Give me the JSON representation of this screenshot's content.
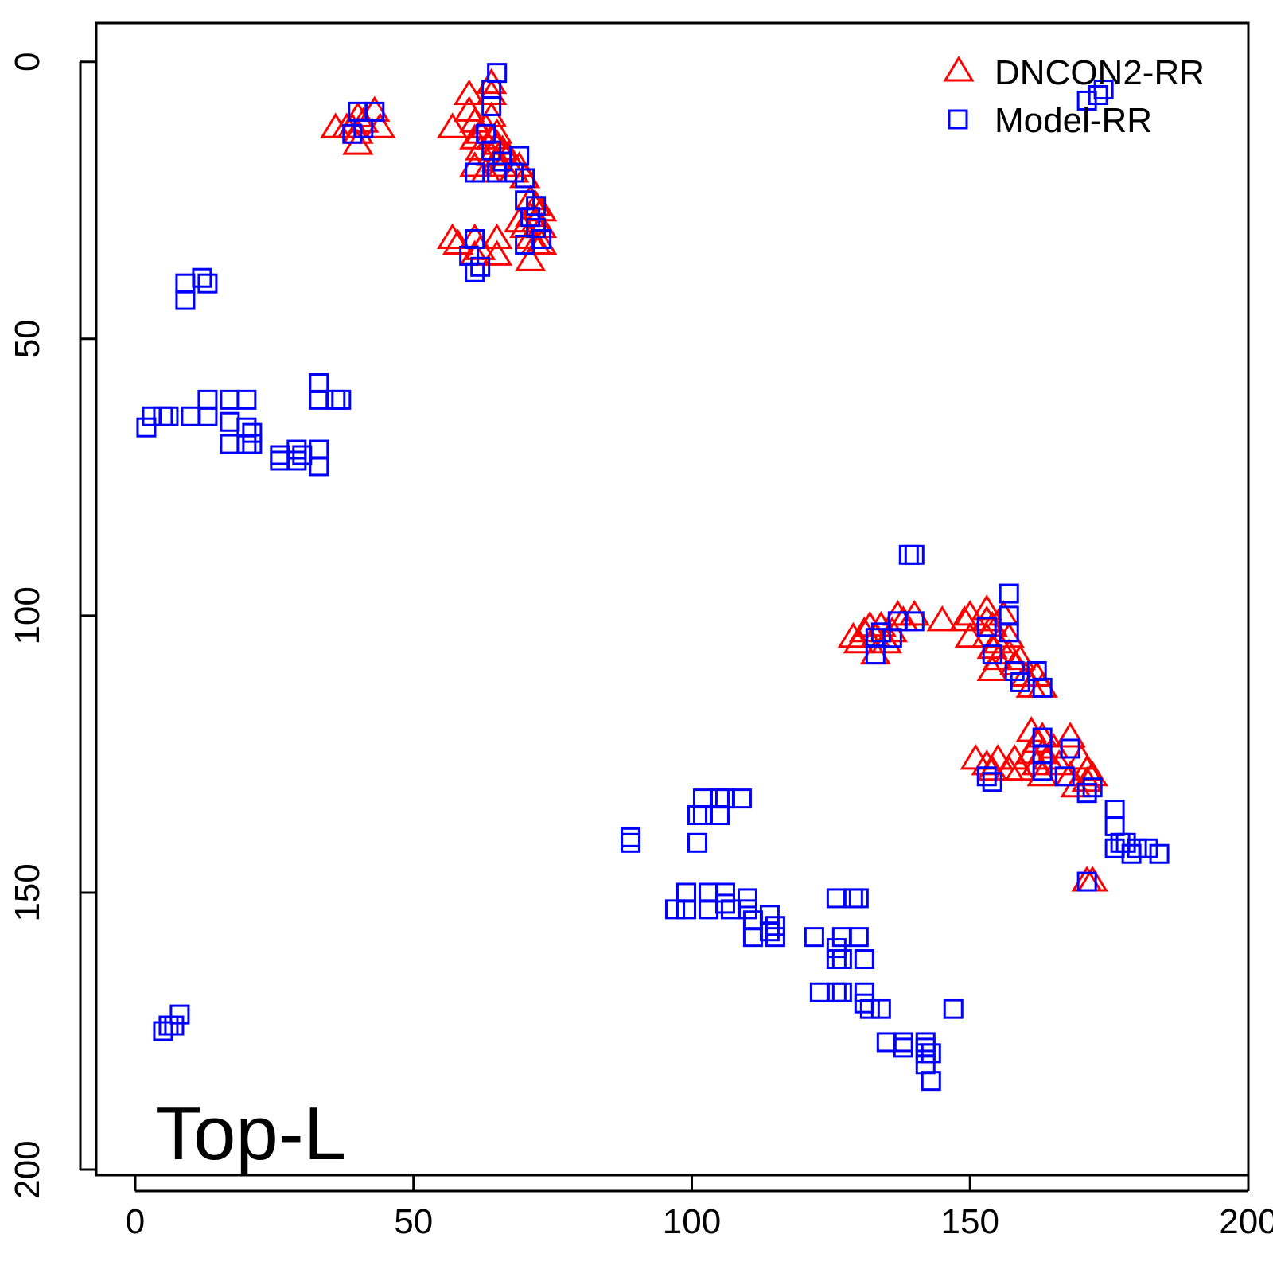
{
  "chart_data": {
    "type": "scatter",
    "title": "",
    "xlabel": "",
    "ylabel": "",
    "xlim": [
      -7,
      200
    ],
    "ylim": [
      -7,
      201
    ],
    "y_reversed": true,
    "x_ticks": [
      "0",
      "50",
      "100",
      "150",
      "200"
    ],
    "y_ticks": [
      "0",
      "50",
      "100",
      "150",
      "200"
    ],
    "grid": false,
    "legend_position": "top-right",
    "annotation": "Top-L",
    "series": [
      {
        "name": "DNCON2-RR",
        "marker": "triangle",
        "color": "#ff0000",
        "points": [
          [
            36,
            12
          ],
          [
            38,
            12
          ],
          [
            39,
            12
          ],
          [
            40,
            10
          ],
          [
            40,
            13
          ],
          [
            41,
            11
          ],
          [
            40,
            15
          ],
          [
            43,
            9
          ],
          [
            44,
            12
          ],
          [
            57,
            12
          ],
          [
            60,
            6
          ],
          [
            60,
            9
          ],
          [
            61,
            11
          ],
          [
            61,
            14
          ],
          [
            62,
            13
          ],
          [
            62,
            16
          ],
          [
            63,
            12
          ],
          [
            64,
            4
          ],
          [
            64,
            6
          ],
          [
            64,
            10
          ],
          [
            64,
            14
          ],
          [
            64,
            17
          ],
          [
            65,
            13
          ],
          [
            65,
            15
          ],
          [
            65,
            18
          ],
          [
            66,
            16
          ],
          [
            66,
            19
          ],
          [
            67,
            17
          ],
          [
            68,
            20
          ],
          [
            69,
            19
          ],
          [
            70,
            21
          ],
          [
            61,
            19
          ],
          [
            63,
            20
          ],
          [
            71,
            25
          ],
          [
            71,
            28
          ],
          [
            72,
            26
          ],
          [
            72,
            29
          ],
          [
            73,
            27
          ],
          [
            73,
            30
          ],
          [
            71,
            32
          ],
          [
            72,
            33
          ],
          [
            69,
            29
          ],
          [
            70,
            30
          ],
          [
            71,
            36
          ],
          [
            73,
            33
          ],
          [
            57,
            32
          ],
          [
            58,
            33
          ],
          [
            61,
            32
          ],
          [
            61,
            35
          ],
          [
            62,
            34
          ],
          [
            65,
            32
          ],
          [
            65,
            35
          ],
          [
            129,
            104
          ],
          [
            130,
            105
          ],
          [
            131,
            103
          ],
          [
            132,
            102
          ],
          [
            133,
            104
          ],
          [
            133,
            107
          ],
          [
            134,
            102
          ],
          [
            135,
            105
          ],
          [
            136,
            103
          ],
          [
            137,
            100
          ],
          [
            138,
            101
          ],
          [
            140,
            100
          ],
          [
            145,
            101
          ],
          [
            149,
            101
          ],
          [
            150,
            100
          ],
          [
            150,
            104
          ],
          [
            153,
            99
          ],
          [
            153,
            101
          ],
          [
            153,
            104
          ],
          [
            154,
            102
          ],
          [
            154,
            106
          ],
          [
            154,
            110
          ],
          [
            155,
            105
          ],
          [
            155,
            108
          ],
          [
            156,
            100
          ],
          [
            157,
            104
          ],
          [
            157,
            107
          ],
          [
            158,
            109
          ],
          [
            159,
            108
          ],
          [
            160,
            111
          ],
          [
            161,
            113
          ],
          [
            162,
            111
          ],
          [
            163,
            113
          ],
          [
            151,
            126
          ],
          [
            153,
            127
          ],
          [
            154,
            128
          ],
          [
            155,
            126
          ],
          [
            157,
            128
          ],
          [
            158,
            126
          ],
          [
            159,
            128
          ],
          [
            161,
            121
          ],
          [
            161,
            125
          ],
          [
            162,
            123
          ],
          [
            162,
            127
          ],
          [
            163,
            122
          ],
          [
            163,
            125
          ],
          [
            163,
            129
          ],
          [
            164,
            126
          ],
          [
            165,
            124
          ],
          [
            166,
            127
          ],
          [
            168,
            122
          ],
          [
            168,
            129
          ],
          [
            169,
            131
          ],
          [
            170,
            126
          ],
          [
            171,
            128
          ],
          [
            171,
            130
          ],
          [
            172,
            129
          ],
          [
            171,
            148
          ],
          [
            172,
            148
          ]
        ]
      },
      {
        "name": "Model-RR",
        "marker": "square",
        "color": "#0000ff",
        "points": [
          [
            39,
            13
          ],
          [
            40,
            9
          ],
          [
            41,
            12
          ],
          [
            43,
            9
          ],
          [
            65,
            2
          ],
          [
            64,
            5
          ],
          [
            64,
            8
          ],
          [
            63,
            13
          ],
          [
            64,
            16
          ],
          [
            65,
            20
          ],
          [
            66,
            18
          ],
          [
            68,
            20
          ],
          [
            69,
            17
          ],
          [
            61,
            20
          ],
          [
            70,
            21
          ],
          [
            70,
            25
          ],
          [
            72,
            26
          ],
          [
            71,
            28
          ],
          [
            72,
            30
          ],
          [
            70,
            33
          ],
          [
            73,
            32
          ],
          [
            61,
            32
          ],
          [
            60,
            35
          ],
          [
            62,
            37
          ],
          [
            61,
            38
          ],
          [
            171,
            7
          ],
          [
            173,
            6
          ],
          [
            174,
            5
          ],
          [
            9,
            40
          ],
          [
            9,
            43
          ],
          [
            12,
            39
          ],
          [
            13,
            40
          ],
          [
            2,
            66
          ],
          [
            3,
            64
          ],
          [
            5,
            64
          ],
          [
            6,
            64
          ],
          [
            10,
            64
          ],
          [
            13,
            61
          ],
          [
            13,
            64
          ],
          [
            17,
            61
          ],
          [
            17,
            65
          ],
          [
            20,
            61
          ],
          [
            20,
            66
          ],
          [
            21,
            67
          ],
          [
            17,
            69
          ],
          [
            20,
            69
          ],
          [
            21,
            69
          ],
          [
            26,
            71
          ],
          [
            26,
            72
          ],
          [
            29,
            70
          ],
          [
            29,
            72
          ],
          [
            30,
            71
          ],
          [
            33,
            70
          ],
          [
            33,
            73
          ],
          [
            33,
            58
          ],
          [
            33,
            61
          ],
          [
            36,
            61
          ],
          [
            37,
            61
          ],
          [
            139,
            89
          ],
          [
            140,
            89
          ],
          [
            140,
            101
          ],
          [
            137,
            101
          ],
          [
            136,
            104
          ],
          [
            133,
            104
          ],
          [
            133,
            107
          ],
          [
            134,
            103
          ],
          [
            157,
            96
          ],
          [
            153,
            102
          ],
          [
            157,
            100
          ],
          [
            157,
            103
          ],
          [
            154,
            107
          ],
          [
            158,
            110
          ],
          [
            159,
            112
          ],
          [
            162,
            110
          ],
          [
            163,
            113
          ],
          [
            154,
            130
          ],
          [
            153,
            129
          ],
          [
            163,
            122
          ],
          [
            163,
            125
          ],
          [
            163,
            128
          ],
          [
            168,
            124
          ],
          [
            167,
            129
          ],
          [
            171,
            132
          ],
          [
            172,
            131
          ],
          [
            89,
            140
          ],
          [
            89,
            141
          ],
          [
            101,
            136
          ],
          [
            101,
            141
          ],
          [
            102,
            133
          ],
          [
            102,
            136
          ],
          [
            105,
            133
          ],
          [
            106,
            133
          ],
          [
            109,
            133
          ],
          [
            105,
            136
          ],
          [
            176,
            135
          ],
          [
            176,
            138
          ],
          [
            177,
            141
          ],
          [
            176,
            142
          ],
          [
            178,
            141
          ],
          [
            179,
            143
          ],
          [
            180,
            142
          ],
          [
            182,
            142
          ],
          [
            184,
            143
          ],
          [
            171,
            148
          ],
          [
            99,
            150
          ],
          [
            103,
            150
          ],
          [
            106,
            150
          ],
          [
            110,
            151
          ],
          [
            97,
            153
          ],
          [
            99,
            153
          ],
          [
            103,
            153
          ],
          [
            106,
            152
          ],
          [
            107,
            153
          ],
          [
            110,
            153
          ],
          [
            111,
            155
          ],
          [
            114,
            154
          ],
          [
            115,
            156
          ],
          [
            111,
            158
          ],
          [
            114,
            157
          ],
          [
            115,
            158
          ],
          [
            122,
            158
          ],
          [
            127,
            158
          ],
          [
            130,
            158
          ],
          [
            126,
            151
          ],
          [
            129,
            151
          ],
          [
            130,
            151
          ],
          [
            126,
            160
          ],
          [
            126,
            162
          ],
          [
            127,
            162
          ],
          [
            131,
            162
          ],
          [
            123,
            168
          ],
          [
            126,
            168
          ],
          [
            127,
            168
          ],
          [
            131,
            168
          ],
          [
            131,
            170
          ],
          [
            132,
            171
          ],
          [
            134,
            171
          ],
          [
            147,
            171
          ],
          [
            135,
            177
          ],
          [
            138,
            177
          ],
          [
            142,
            177
          ],
          [
            138,
            178
          ],
          [
            142,
            178
          ],
          [
            142,
            179
          ],
          [
            143,
            179
          ],
          [
            142,
            181
          ],
          [
            143,
            184
          ],
          [
            5,
            175
          ],
          [
            6,
            174
          ],
          [
            7,
            174
          ],
          [
            8,
            172
          ]
        ]
      }
    ]
  }
}
